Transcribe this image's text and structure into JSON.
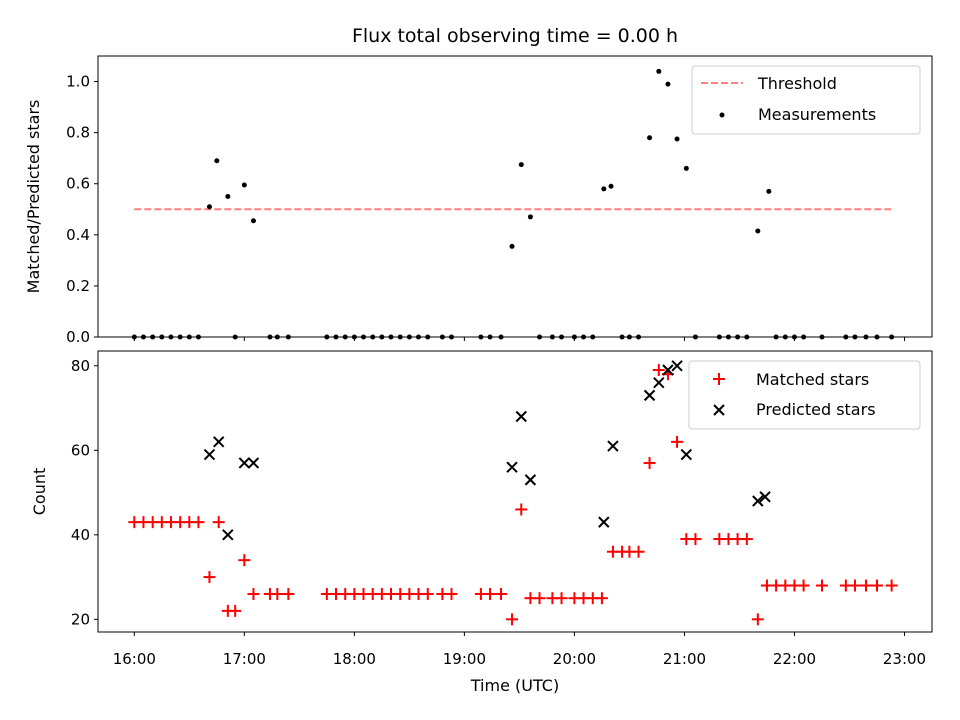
{
  "colors": {
    "threshold": "#ff7f7f",
    "measurements": "#000000",
    "matched": "#ff0000",
    "predicted": "#000000"
  },
  "chart_data": [
    {
      "type": "scatter",
      "title": "Flux total observing time = 0.00 h",
      "xlabel": "",
      "ylabel": "Matched/Predicted stars",
      "xlim": [
        15.67,
        23.25
      ],
      "ylim": [
        0,
        1.1
      ],
      "grid": false,
      "legend_position": "top-right",
      "x_ticks": [
        16,
        17,
        18,
        19,
        20,
        21,
        22,
        23
      ],
      "yticks": [
        0.0,
        0.2,
        0.4,
        0.6,
        0.8,
        1.0
      ],
      "ytick_labels": [
        "0.0",
        "0.2",
        "0.4",
        "0.6",
        "0.8",
        "1.0"
      ],
      "threshold": {
        "name": "Threshold",
        "value": 0.5,
        "x_range": [
          16.0,
          22.9
        ]
      },
      "series": [
        {
          "name": "Measurements",
          "points": [
            [
              16.0,
              0
            ],
            [
              16.083,
              0
            ],
            [
              16.167,
              0
            ],
            [
              16.25,
              0
            ],
            [
              16.333,
              0
            ],
            [
              16.417,
              0
            ],
            [
              16.5,
              0
            ],
            [
              16.583,
              0
            ],
            [
              16.683,
              0.51
            ],
            [
              16.75,
              0.69
            ],
            [
              16.85,
              0.55
            ],
            [
              16.917,
              0
            ],
            [
              17.0,
              0.595
            ],
            [
              17.083,
              0.455
            ],
            [
              17.233,
              0
            ],
            [
              17.3,
              0
            ],
            [
              17.4,
              0
            ],
            [
              17.75,
              0
            ],
            [
              17.833,
              0
            ],
            [
              17.917,
              0
            ],
            [
              18.0,
              0
            ],
            [
              18.083,
              0
            ],
            [
              18.167,
              0
            ],
            [
              18.25,
              0
            ],
            [
              18.333,
              0
            ],
            [
              18.417,
              0
            ],
            [
              18.5,
              0
            ],
            [
              18.583,
              0
            ],
            [
              18.667,
              0
            ],
            [
              18.8,
              0
            ],
            [
              18.883,
              0
            ],
            [
              19.15,
              0
            ],
            [
              19.233,
              0
            ],
            [
              19.333,
              0
            ],
            [
              19.433,
              0.355
            ],
            [
              19.517,
              0.675
            ],
            [
              19.6,
              0.47
            ],
            [
              19.683,
              0
            ],
            [
              19.8,
              0
            ],
            [
              19.883,
              0
            ],
            [
              20.0,
              0
            ],
            [
              20.083,
              0
            ],
            [
              20.167,
              0
            ],
            [
              20.267,
              0.58
            ],
            [
              20.333,
              0.59
            ],
            [
              20.433,
              0
            ],
            [
              20.5,
              0
            ],
            [
              20.583,
              0
            ],
            [
              20.683,
              0.78
            ],
            [
              20.767,
              1.04
            ],
            [
              20.85,
              0.99
            ],
            [
              20.933,
              0.775
            ],
            [
              21.017,
              0.66
            ],
            [
              21.1,
              0
            ],
            [
              21.317,
              0
            ],
            [
              21.4,
              0
            ],
            [
              21.483,
              0
            ],
            [
              21.567,
              0
            ],
            [
              21.667,
              0.415
            ],
            [
              21.767,
              0.57
            ],
            [
              21.833,
              0
            ],
            [
              21.917,
              0
            ],
            [
              22.0,
              0
            ],
            [
              22.083,
              0
            ],
            [
              22.25,
              0
            ],
            [
              22.467,
              0
            ],
            [
              22.55,
              0
            ],
            [
              22.65,
              0
            ],
            [
              22.75,
              0
            ],
            [
              22.883,
              0
            ]
          ]
        }
      ]
    },
    {
      "type": "scatter",
      "title": "",
      "xlabel": "Time (UTC)",
      "ylabel": "Count",
      "xlim": [
        15.67,
        23.25
      ],
      "ylim": [
        17,
        83.5
      ],
      "grid": false,
      "legend_position": "top-right",
      "x_ticks": [
        16,
        17,
        18,
        19,
        20,
        21,
        22,
        23
      ],
      "xtick_labels": [
        "16:00",
        "17:00",
        "18:00",
        "19:00",
        "20:00",
        "21:00",
        "22:00",
        "23:00"
      ],
      "yticks": [
        20,
        40,
        60,
        80
      ],
      "ytick_labels": [
        "20",
        "40",
        "60",
        "80"
      ],
      "series": [
        {
          "name": "Matched stars",
          "points": [
            [
              16.0,
              43
            ],
            [
              16.083,
              43
            ],
            [
              16.167,
              43
            ],
            [
              16.25,
              43
            ],
            [
              16.333,
              43
            ],
            [
              16.417,
              43
            ],
            [
              16.5,
              43
            ],
            [
              16.583,
              43
            ],
            [
              16.683,
              30
            ],
            [
              16.767,
              43
            ],
            [
              16.85,
              22
            ],
            [
              16.917,
              22
            ],
            [
              17.0,
              34
            ],
            [
              17.083,
              26
            ],
            [
              17.233,
              26
            ],
            [
              17.3,
              26
            ],
            [
              17.4,
              26
            ],
            [
              17.75,
              26
            ],
            [
              17.833,
              26
            ],
            [
              17.917,
              26
            ],
            [
              18.0,
              26
            ],
            [
              18.083,
              26
            ],
            [
              18.167,
              26
            ],
            [
              18.25,
              26
            ],
            [
              18.333,
              26
            ],
            [
              18.417,
              26
            ],
            [
              18.5,
              26
            ],
            [
              18.583,
              26
            ],
            [
              18.667,
              26
            ],
            [
              18.8,
              26
            ],
            [
              18.883,
              26
            ],
            [
              19.15,
              26
            ],
            [
              19.233,
              26
            ],
            [
              19.333,
              26
            ],
            [
              19.433,
              20
            ],
            [
              19.517,
              46
            ],
            [
              19.6,
              25
            ],
            [
              19.683,
              25
            ],
            [
              19.8,
              25
            ],
            [
              19.883,
              25
            ],
            [
              20.0,
              25
            ],
            [
              20.083,
              25
            ],
            [
              20.167,
              25
            ],
            [
              20.25,
              25
            ],
            [
              20.35,
              36
            ],
            [
              20.433,
              36
            ],
            [
              20.5,
              36
            ],
            [
              20.583,
              36
            ],
            [
              20.683,
              57
            ],
            [
              20.767,
              79
            ],
            [
              20.85,
              78
            ],
            [
              20.933,
              62
            ],
            [
              21.017,
              39
            ],
            [
              21.1,
              39
            ],
            [
              21.317,
              39
            ],
            [
              21.4,
              39
            ],
            [
              21.483,
              39
            ],
            [
              21.567,
              39
            ],
            [
              21.667,
              20
            ],
            [
              21.75,
              28
            ],
            [
              21.833,
              28
            ],
            [
              21.917,
              28
            ],
            [
              22.0,
              28
            ],
            [
              22.083,
              28
            ],
            [
              22.25,
              28
            ],
            [
              22.467,
              28
            ],
            [
              22.55,
              28
            ],
            [
              22.65,
              28
            ],
            [
              22.75,
              28
            ],
            [
              22.883,
              28
            ]
          ]
        },
        {
          "name": "Predicted stars",
          "points": [
            [
              16.683,
              59
            ],
            [
              16.767,
              62
            ],
            [
              16.85,
              40
            ],
            [
              17.0,
              57
            ],
            [
              17.083,
              57
            ],
            [
              19.433,
              56
            ],
            [
              19.517,
              68
            ],
            [
              19.6,
              53
            ],
            [
              20.267,
              43
            ],
            [
              20.35,
              61
            ],
            [
              20.683,
              73
            ],
            [
              20.767,
              76
            ],
            [
              20.85,
              79
            ],
            [
              20.933,
              80
            ],
            [
              21.017,
              59
            ],
            [
              21.667,
              48
            ],
            [
              21.733,
              49
            ]
          ]
        }
      ]
    }
  ]
}
